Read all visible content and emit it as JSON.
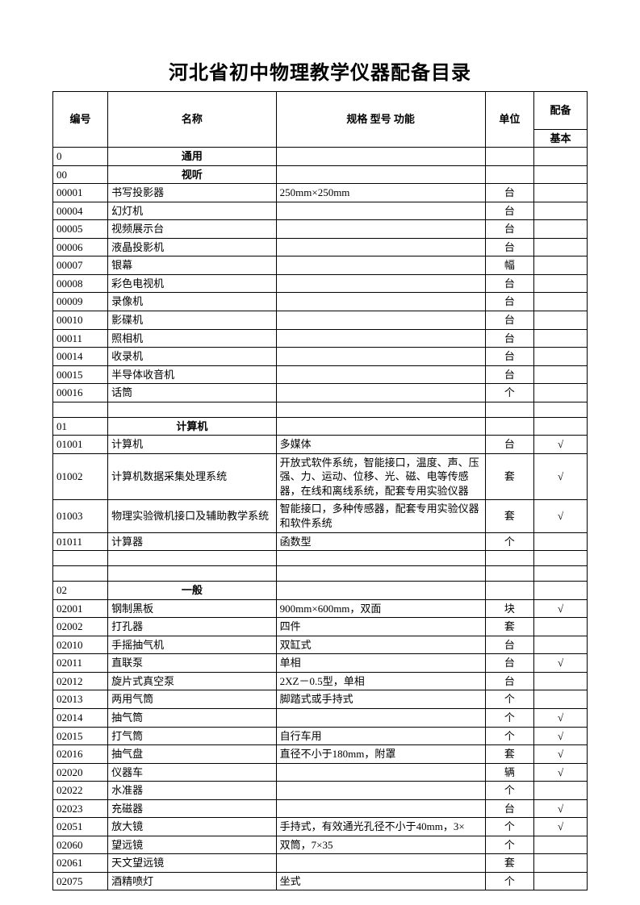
{
  "title": "河北省初中物理教学仪器配备目录",
  "columns": {
    "id": "编号",
    "name": "名称",
    "spec": "规格 型号 功能",
    "unit": "单位",
    "equip": "配备",
    "sub_basic": "基本"
  },
  "rows": [
    {
      "type": "section",
      "id": "0",
      "name": "通用"
    },
    {
      "type": "section",
      "id": "00",
      "name": "视听"
    },
    {
      "type": "item",
      "id": "00001",
      "name": "书写投影器",
      "spec": "250mm×250mm",
      "unit": "台",
      "equip": ""
    },
    {
      "type": "item",
      "id": "00004",
      "name": "幻灯机",
      "spec": "",
      "unit": "台",
      "equip": ""
    },
    {
      "type": "item",
      "id": "00005",
      "name": "视频展示台",
      "spec": "",
      "unit": "台",
      "equip": ""
    },
    {
      "type": "item",
      "id": "00006",
      "name": "液晶投影机",
      "spec": "",
      "unit": "台",
      "equip": ""
    },
    {
      "type": "item",
      "id": "00007",
      "name": "银幕",
      "spec": "",
      "unit": "幅",
      "equip": ""
    },
    {
      "type": "item",
      "id": "00008",
      "name": "彩色电视机",
      "spec": "",
      "unit": "台",
      "equip": ""
    },
    {
      "type": "item",
      "id": "00009",
      "name": "录像机",
      "spec": "",
      "unit": "台",
      "equip": ""
    },
    {
      "type": "item",
      "id": "00010",
      "name": "影碟机",
      "spec": "",
      "unit": "台",
      "equip": ""
    },
    {
      "type": "item",
      "id": "00011",
      "name": "照相机",
      "spec": "",
      "unit": "台",
      "equip": ""
    },
    {
      "type": "item",
      "id": "00014",
      "name": "收录机",
      "spec": "",
      "unit": "台",
      "equip": ""
    },
    {
      "type": "item",
      "id": "00015",
      "name": "半导体收音机",
      "spec": "",
      "unit": "台",
      "equip": ""
    },
    {
      "type": "item",
      "id": "00016",
      "name": "话筒",
      "spec": "",
      "unit": "个",
      "equip": ""
    },
    {
      "type": "empty"
    },
    {
      "type": "section",
      "id": "01",
      "name": "计算机"
    },
    {
      "type": "item",
      "id": "01001",
      "name": "计算机",
      "spec": "多媒体",
      "unit": "台",
      "equip": "√"
    },
    {
      "type": "item",
      "id": "01002",
      "name": "计算机数据采集处理系统",
      "spec": "开放式软件系统，智能接口，温度、声、压强、力、运动、位移、光、磁、电等传感器，在线和离线系统，配套专用实验仪器",
      "unit": "套",
      "equip": "√"
    },
    {
      "type": "item",
      "id": "01003",
      "name": "物理实验微机接口及辅助教学系统",
      "spec": "智能接口，多种传感器，配套专用实验仪器和软件系统",
      "unit": "套",
      "equip": "√"
    },
    {
      "type": "item",
      "id": "01011",
      "name": "计算器",
      "spec": "函数型",
      "unit": "个",
      "equip": ""
    },
    {
      "type": "empty"
    },
    {
      "type": "empty"
    },
    {
      "type": "section",
      "id": "02",
      "name": "一般"
    },
    {
      "type": "item",
      "id": "02001",
      "name": "钢制黑板",
      "spec": "900mm×600mm，双面",
      "unit": "块",
      "equip": "√"
    },
    {
      "type": "item",
      "id": "02002",
      "name": "打孔器",
      "spec": "四件",
      "unit": "套",
      "equip": ""
    },
    {
      "type": "item",
      "id": "02010",
      "name": "手摇抽气机",
      "spec": "双缸式",
      "unit": "台",
      "equip": ""
    },
    {
      "type": "item",
      "id": "02011",
      "name": "直联泵",
      "spec": "单相",
      "unit": "台",
      "equip": "√"
    },
    {
      "type": "item",
      "id": "02012",
      "name": "旋片式真空泵",
      "spec": "2XZ－0.5型，单相",
      "unit": "台",
      "equip": ""
    },
    {
      "type": "item",
      "id": "02013",
      "name": "两用气筒",
      "spec": "脚踏式或手持式",
      "unit": "个",
      "equip": ""
    },
    {
      "type": "item",
      "id": "02014",
      "name": "抽气筒",
      "spec": "",
      "unit": "个",
      "equip": "√"
    },
    {
      "type": "item",
      "id": "02015",
      "name": "打气筒",
      "spec": "自行车用",
      "unit": "个",
      "equip": "√"
    },
    {
      "type": "item",
      "id": "02016",
      "name": "抽气盘",
      "spec": "直径不小于180mm，附罩",
      "unit": "套",
      "equip": "√"
    },
    {
      "type": "item",
      "id": "02020",
      "name": "仪器车",
      "spec": "",
      "unit": "辆",
      "equip": "√"
    },
    {
      "type": "item",
      "id": "02022",
      "name": "水准器",
      "spec": "",
      "unit": "个",
      "equip": ""
    },
    {
      "type": "item",
      "id": "02023",
      "name": "充磁器",
      "spec": "",
      "unit": "台",
      "equip": "√"
    },
    {
      "type": "item",
      "id": "02051",
      "name": "放大镜",
      "spec": "手持式，有效通光孔径不小于40mm，3×",
      "unit": "个",
      "equip": "√"
    },
    {
      "type": "item",
      "id": "02060",
      "name": "望远镜",
      "spec": "双筒，7×35",
      "unit": "个",
      "equip": ""
    },
    {
      "type": "item",
      "id": "02061",
      "name": "天文望远镜",
      "spec": "",
      "unit": "套",
      "equip": ""
    },
    {
      "type": "item",
      "id": "02075",
      "name": "酒精喷灯",
      "spec": "坐式",
      "unit": "个",
      "equip": ""
    }
  ]
}
